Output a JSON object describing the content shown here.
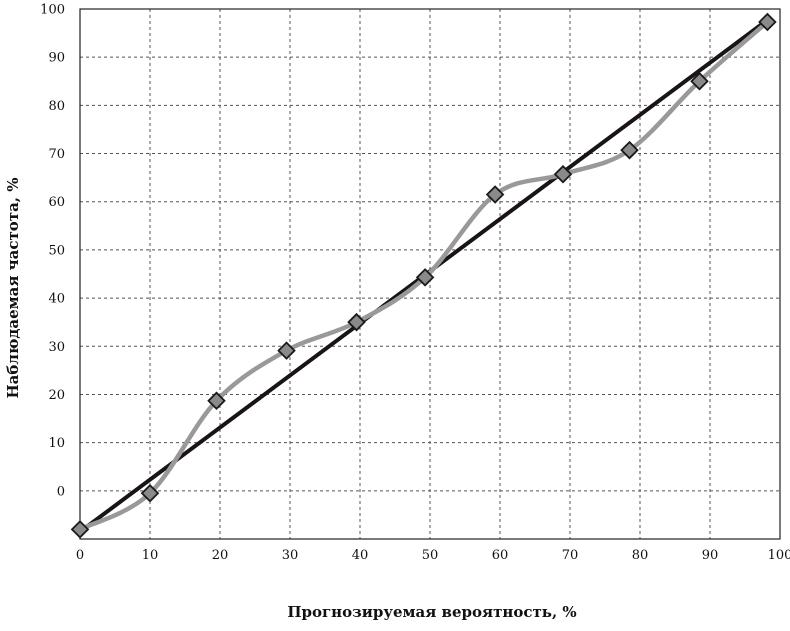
{
  "chart_data": {
    "type": "line",
    "xlabel": "Прогнозируемая вероятность, %",
    "ylabel": "Наблюдаемая частота, %",
    "xlim": [
      0,
      100
    ],
    "ylim": [
      -10,
      100
    ],
    "grid": true,
    "x_ticks": [
      "0",
      "10",
      "20",
      "30",
      "40",
      "50",
      "60",
      "70",
      "80",
      "90",
      "100"
    ],
    "y_ticks": [
      "0",
      "10",
      "20",
      "30",
      "40",
      "50",
      "60",
      "70",
      "80",
      "90",
      "100"
    ],
    "series": [
      {
        "style": "diagonal",
        "color": "#1a1414",
        "x": [
          0,
          98
        ],
        "y": [
          -8.5,
          97.5
        ]
      },
      {
        "style": "diamond-markers",
        "color": "#999999",
        "marker_color": "#8a8a8a",
        "x": [
          0,
          10,
          19.5,
          29.5,
          39.5,
          49.3,
          59.3,
          69,
          78.5,
          88.5,
          98.2
        ],
        "y": [
          -8,
          -0.5,
          18.7,
          29.1,
          35,
          44.3,
          61.5,
          65.7,
          70.7,
          85,
          97.3
        ]
      }
    ]
  }
}
